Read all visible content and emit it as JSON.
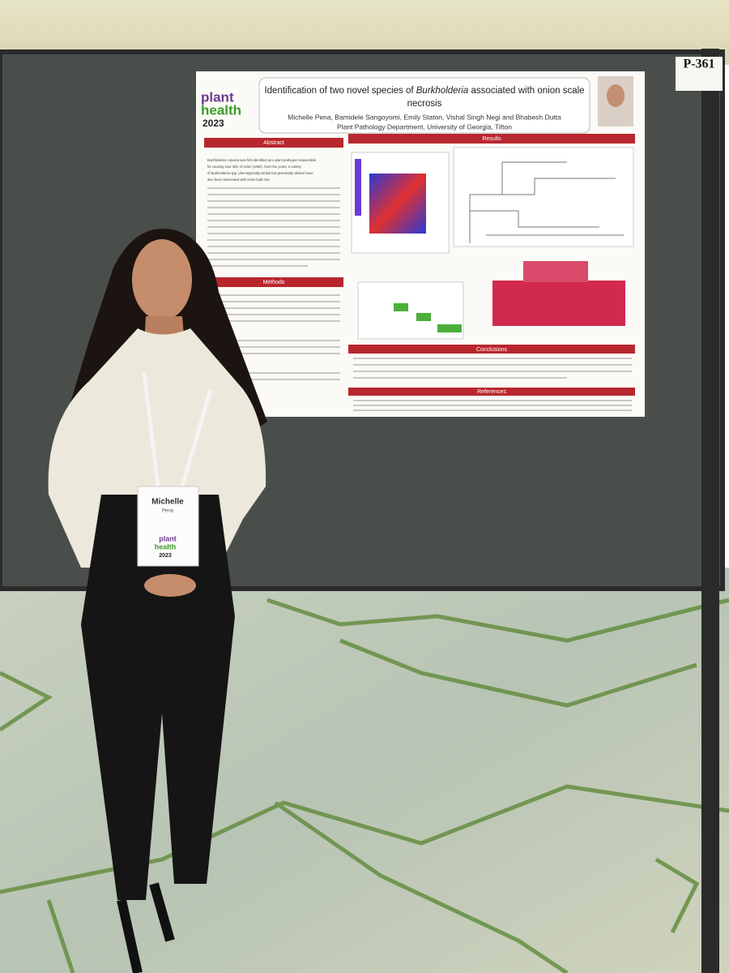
{
  "board_label": "P-361",
  "poster": {
    "logo": {
      "line1": "plant",
      "line2": "health",
      "year": "2023"
    },
    "title": {
      "prefix": "Identification of two novel species of ",
      "italic": "Burkholderia",
      "suffix": " associated with onion scale",
      "line2": "necrosis"
    },
    "authors": "Michelle Pena, Bamidele Sangoyomi, Emily Staton, Vishal Singh Negi and Bhabesh Dutta",
    "affiliation": "Plant Pathology Department, University of Georgia, Tifton",
    "sections": [
      "Abstract",
      "Results",
      "Methods",
      "Conclusions",
      "References"
    ],
    "abstract_lines": [
      "Burkholderia cepacia was first identified as a plant pathogen responsible",
      "for causing sour skin of onion (1950). Over the years, a variety",
      "of Burkholderia spp. phenotypically similar but genetically distinct have",
      "also been associated with onion bulb rots."
    ]
  },
  "badge": {
    "first_name": "Michelle",
    "last_name": "Pena",
    "logo_line1": "plant",
    "logo_line2": "health",
    "year": "2023"
  }
}
